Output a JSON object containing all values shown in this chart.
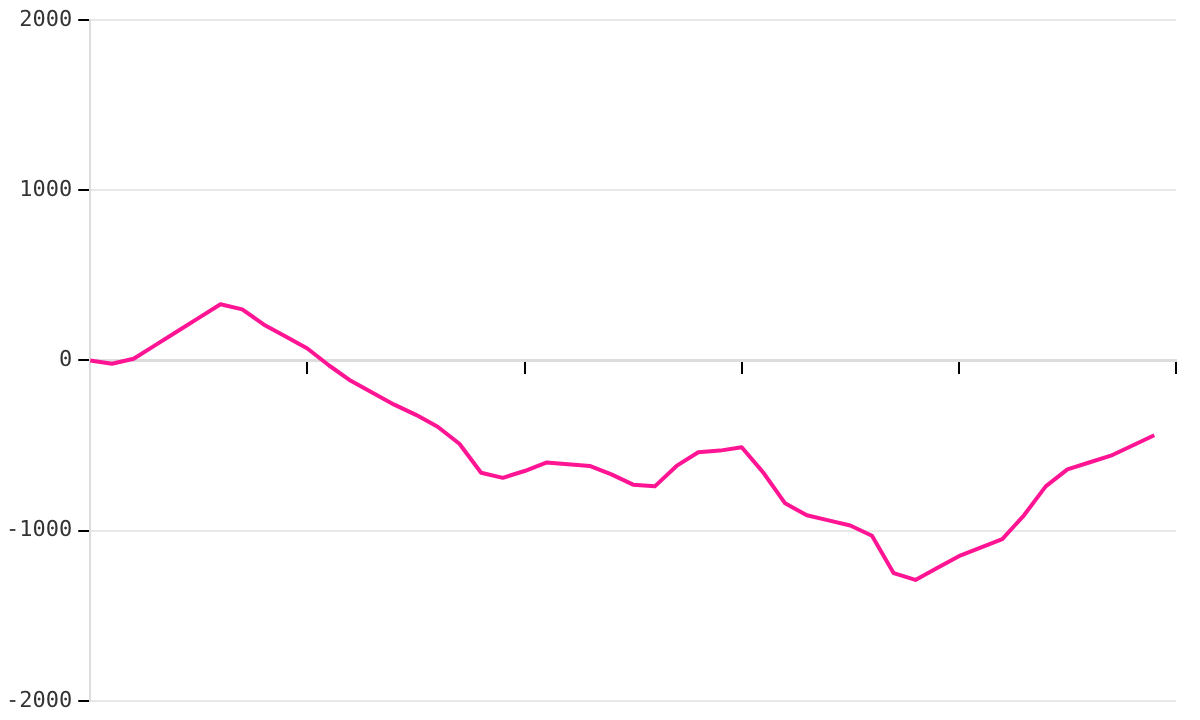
{
  "chart_data": {
    "type": "line",
    "categories": [
      null,
      null,
      null,
      null,
      null,
      null,
      null,
      null,
      null,
      null,
      null,
      null,
      null,
      null,
      null,
      null,
      null,
      null,
      null,
      null,
      null,
      null,
      null,
      null,
      null,
      null,
      null,
      null,
      null,
      null,
      null,
      null,
      null,
      null,
      null,
      null,
      null,
      null,
      null,
      null,
      null,
      null,
      null,
      null,
      null,
      null,
      null,
      null,
      null,
      null,
      null
    ],
    "series": [
      {
        "color": "#ff1493",
        "values": [
          0,
          -20,
          10,
          90,
          170,
          250,
          330,
          300,
          210,
          140,
          70,
          -30,
          -120,
          -190,
          -260,
          -320,
          -390,
          -490,
          -660,
          -690,
          -650,
          -600,
          -610,
          -620,
          -670,
          -730,
          -740,
          -620,
          -540,
          -530,
          -510,
          -660,
          -840,
          -910,
          -940,
          -970,
          -1030,
          -1250,
          -1290,
          -1220,
          -1150,
          -1100,
          -1050,
          -910,
          -740,
          -640,
          -600,
          -560,
          -500,
          -440,
          null
        ]
      }
    ],
    "ylim": [
      -2000,
      2000
    ],
    "yticks": [
      -2000,
      -1000,
      0,
      1000,
      2000
    ],
    "grid": "y",
    "legend": false,
    "marker": "none",
    "line_style": "solid"
  }
}
